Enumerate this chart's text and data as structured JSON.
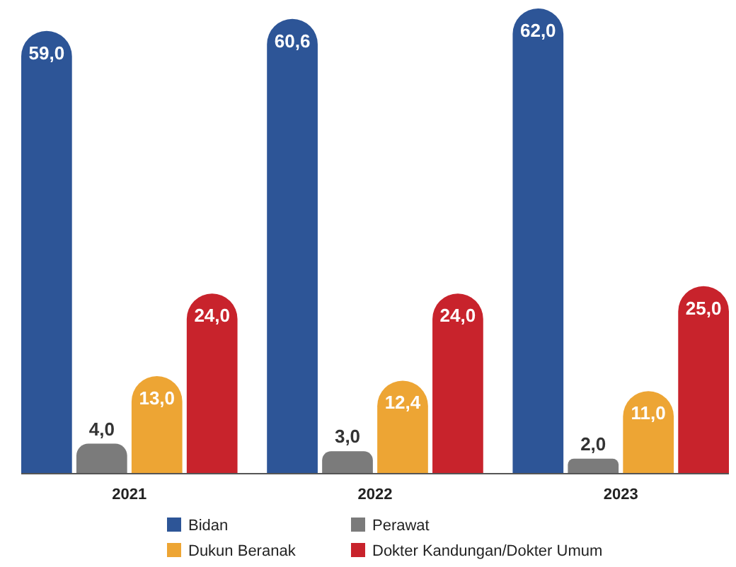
{
  "chart_data": {
    "type": "bar",
    "categories": [
      "2021",
      "2022",
      "2023"
    ],
    "series": [
      {
        "name": "Bidan",
        "color": "#2d5597",
        "values": [
          59.0,
          60.6,
          62.0
        ],
        "value_labels": [
          "59,0",
          "60,6",
          "62,0"
        ]
      },
      {
        "name": "Perawat",
        "color": "#7b7b7b",
        "values": [
          4.0,
          3.0,
          2.0
        ],
        "value_labels": [
          "4,0",
          "3,0",
          "2,0"
        ]
      },
      {
        "name": "Dukun Beranak",
        "color": "#eda534",
        "values": [
          13.0,
          12.4,
          11.0
        ],
        "value_labels": [
          "13,0",
          "12,4",
          "11,0"
        ]
      },
      {
        "name": "Dokter Kandungan/Dokter Umum",
        "color": "#c8232c",
        "values": [
          24.0,
          24.0,
          25.0
        ],
        "value_labels": [
          "24,0",
          "24,0",
          "25,0"
        ]
      }
    ],
    "legend": "bottom"
  }
}
